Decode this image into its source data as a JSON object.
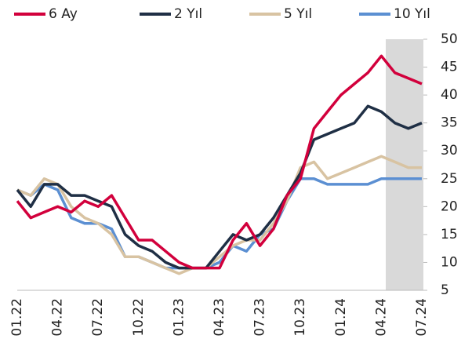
{
  "chart_data": {
    "type": "line",
    "categories": [
      "01.22",
      null,
      null,
      "04.22",
      null,
      null,
      "07.22",
      null,
      null,
      "10.22",
      null,
      null,
      "01.23",
      null,
      null,
      "04.23",
      null,
      null,
      "07.23",
      null,
      null,
      "10.23",
      null,
      null,
      "01.24",
      null,
      null,
      "04.24",
      null,
      null,
      "07.24"
    ],
    "series": [
      {
        "name": "6 Ay",
        "color": "#d2003c",
        "values": [
          21,
          18,
          19,
          20,
          19,
          21,
          20,
          22,
          18,
          14,
          14,
          12,
          10,
          9,
          9,
          9,
          14,
          17,
          13,
          16,
          22,
          25,
          34,
          37,
          40,
          42,
          44,
          47,
          44,
          43,
          42
        ]
      },
      {
        "name": "2 Yıl",
        "color": "#1f2f45",
        "values": [
          23,
          20,
          24,
          24,
          22,
          22,
          21,
          20,
          15,
          13,
          12,
          10,
          9,
          9,
          9,
          12,
          15,
          14,
          15,
          18,
          22,
          26,
          32,
          33,
          34,
          35,
          38,
          37,
          35,
          34,
          35
        ]
      },
      {
        "name": "5 Yıl",
        "color": "#d8c3a2",
        "values": [
          23,
          22,
          25,
          24,
          20,
          18,
          17,
          15,
          11,
          11,
          10,
          9,
          8,
          9,
          9,
          11,
          13,
          14,
          14,
          17,
          21,
          27,
          28,
          25,
          26,
          27,
          28,
          29,
          28,
          27,
          27
        ]
      },
      {
        "name": "10 Yıl",
        "color": "#5b8fd2",
        "values": [
          23,
          22,
          24,
          23,
          18,
          17,
          17,
          16,
          11,
          11,
          10,
          9,
          9,
          9,
          9,
          10,
          13,
          12,
          15,
          16,
          21,
          25,
          25,
          24,
          24,
          24,
          24,
          25,
          25,
          25,
          25
        ]
      }
    ],
    "ylim": [
      5,
      50
    ],
    "yticks": [
      5,
      10,
      15,
      20,
      25,
      30,
      35,
      40,
      45,
      50
    ],
    "legend": "top"
  }
}
